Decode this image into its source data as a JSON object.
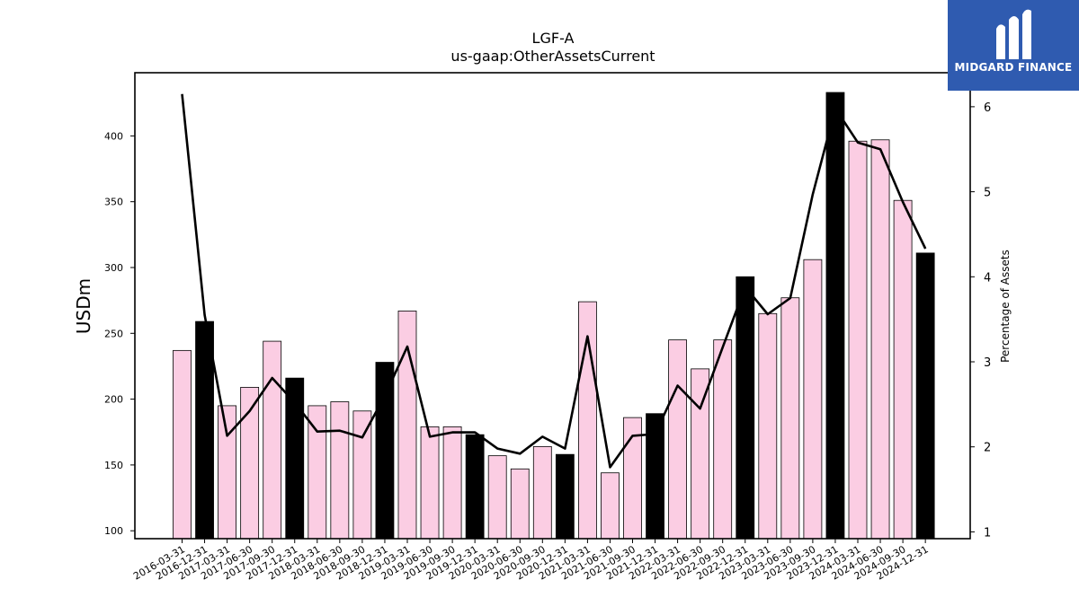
{
  "chart_data": {
    "type": "bar",
    "title": "LGF-A",
    "subtitle": "us-gaap:OtherAssetsCurrent",
    "ylabel": "USDm",
    "y2label": "Percentage of Assets",
    "ylim": [
      94,
      448
    ],
    "y2lim": [
      0.92,
      6.4
    ],
    "yticks": [
      100,
      150,
      200,
      250,
      300,
      350,
      400
    ],
    "y2ticks": [
      1,
      2,
      3,
      4,
      5,
      6
    ],
    "categories": [
      "2016-03-31",
      "2016-12-31",
      "2017-03-31",
      "2017-06-30",
      "2017-09-30",
      "2017-12-31",
      "2018-03-31",
      "2018-06-30",
      "2018-09-30",
      "2018-12-31",
      "2019-03-31",
      "2019-06-30",
      "2019-09-30",
      "2019-12-31",
      "2020-03-31",
      "2020-06-30",
      "2020-09-30",
      "2020-12-31",
      "2021-03-31",
      "2021-06-30",
      "2021-09-30",
      "2021-12-31",
      "2022-03-31",
      "2022-06-30",
      "2022-09-30",
      "2022-12-31",
      "2023-03-31",
      "2023-06-30",
      "2023-09-30",
      "2023-12-31",
      "2024-03-31",
      "2024-06-30",
      "2024-09-30",
      "2024-12-31"
    ],
    "series": [
      {
        "name": "",
        "kind": "bar",
        "values": [
          237,
          259,
          195,
          209,
          244,
          216,
          195,
          198,
          191,
          228,
          267,
          179,
          179,
          173,
          157,
          147,
          164,
          158,
          274,
          144,
          186,
          189,
          245,
          223,
          245,
          293,
          265,
          277,
          306,
          433,
          396,
          397,
          351,
          311
        ]
      },
      {
        "name": "",
        "kind": "line",
        "axis": "right",
        "values": [
          6.15,
          3.55,
          2.13,
          2.42,
          2.81,
          2.52,
          2.18,
          2.19,
          2.11,
          2.6,
          3.18,
          2.12,
          2.17,
          2.17,
          1.98,
          1.92,
          2.12,
          1.98,
          3.3,
          1.76,
          2.13,
          2.15,
          2.72,
          2.45,
          3.17,
          3.88,
          3.56,
          3.75,
          4.97,
          5.98,
          5.58,
          5.5,
          4.88,
          4.33
        ]
      }
    ],
    "highlight_color": "#000000",
    "bar_color": "#fbcde3",
    "line_color": "#000000"
  },
  "logo": {
    "text": "MIDGARD FINANCE"
  }
}
